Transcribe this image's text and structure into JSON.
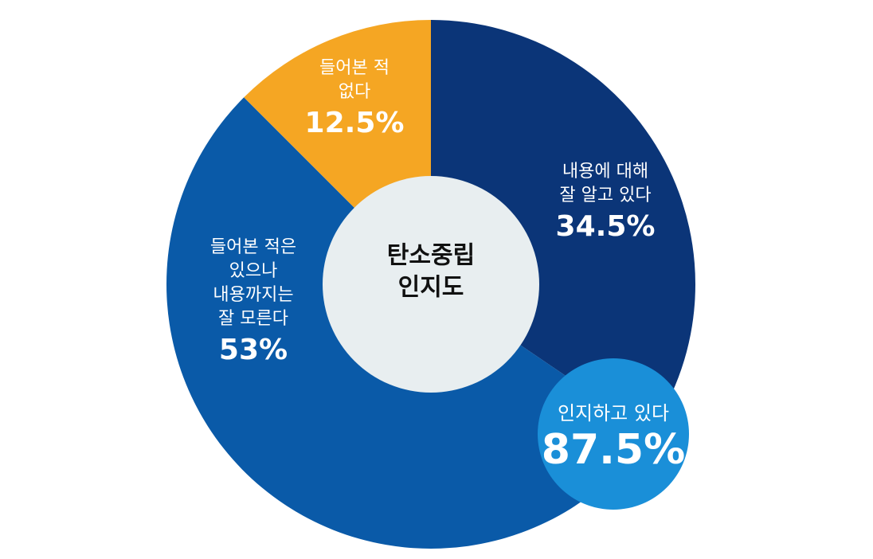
{
  "chart_data": {
    "type": "donut",
    "center_label": [
      "탄소중립",
      "인지도"
    ],
    "categories": [
      [
        "내용에 대해",
        "잘 알고 있다"
      ],
      [
        "들어본 적은",
        "있으나",
        "내용까지는",
        "잘 모른다"
      ],
      [
        "들어본 적",
        "없다"
      ]
    ],
    "values": [
      34.5,
      53,
      12.5
    ],
    "value_labels": [
      "34.5%",
      "53%",
      "12.5%"
    ],
    "colors": [
      "#0b3578",
      "#0a5aa8",
      "#f5a623"
    ],
    "highlight": {
      "text": "인지하고 있다",
      "value": 87.5,
      "value_label": "87.5%",
      "color": "#1a8fd8"
    }
  }
}
